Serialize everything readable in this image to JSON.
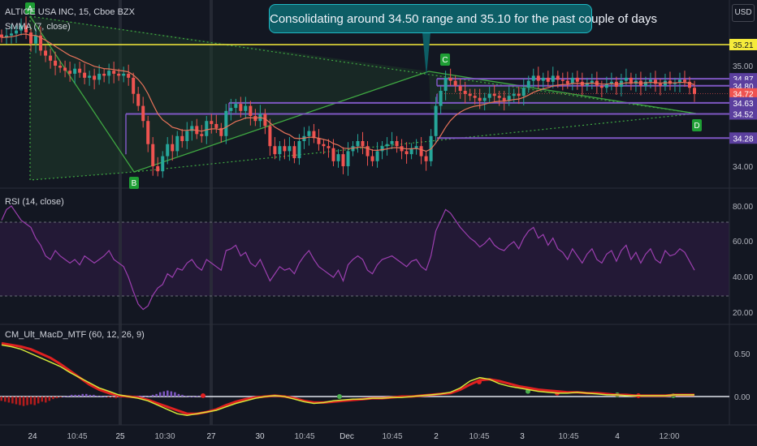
{
  "header": {
    "symbol": "ALTICE USA INC, 15, Cboe BZX",
    "indicator_smma": "SMMA (7, close)",
    "indicator_rsi": "RSI (14, close)",
    "indicator_macd": "CM_Ult_MacD_MTF (60, 12, 26, 9)",
    "currency": "USD"
  },
  "callout": "Consolidating around 34.50 range and 35.10 for the past couple of days",
  "pattern_points": [
    "A",
    "B",
    "C",
    "D"
  ],
  "colors": {
    "up": "#26a69a",
    "down": "#ef5350",
    "smma": "#e8735a",
    "rsi": "#9c3fb0",
    "macd_fast": "#d4e83a",
    "macd_slow_red": "#e02020",
    "macd_slow_green": "#4caf50",
    "level_line": "#7e57c2",
    "resistance": "#f5eb3b",
    "pattern": "#3fa842"
  },
  "chart_data": [
    {
      "type": "candlestick",
      "title": "ALTICE USA INC, 15, Cboe BZX",
      "ylim": [
        33.7,
        35.6
      ],
      "price_ticks": [
        "35.00",
        "34.00"
      ],
      "x_ticks": [
        "24",
        "10:45",
        "25",
        "10:30",
        "27",
        "30",
        "10:45",
        "Dec",
        "10:45",
        "2",
        "10:45",
        "3",
        "10:45",
        "4",
        "12:00"
      ],
      "horizontal_levels": [
        {
          "label": "35.21",
          "value": 35.21,
          "color": "#f5eb3b"
        },
        {
          "label": "34.87",
          "value": 34.87,
          "color": "#7e57c2"
        },
        {
          "label": "34.80",
          "value": 34.8,
          "color": "#7e57c2"
        },
        {
          "label": "34.72",
          "value": 34.72,
          "color": "#ef5350"
        },
        {
          "label": "34.63",
          "value": 34.63,
          "color": "#7e57c2"
        },
        {
          "label": "34.52",
          "value": 34.52,
          "color": "#7e57c2"
        },
        {
          "label": "34.28",
          "value": 34.28,
          "color": "#7e57c2"
        }
      ],
      "closes": [
        35.28,
        35.3,
        35.32,
        35.35,
        35.4,
        35.33,
        35.22,
        35.3,
        35.15,
        35.1,
        35.05,
        35.0,
        34.98,
        34.95,
        34.92,
        34.97,
        34.93,
        34.88,
        34.9,
        34.86,
        34.92,
        34.9,
        34.95,
        34.92,
        34.9,
        34.92,
        34.88,
        34.72,
        34.6,
        34.45,
        34.22,
        34.0,
        33.95,
        34.1,
        34.22,
        34.15,
        34.3,
        34.25,
        34.35,
        34.4,
        34.32,
        34.3,
        34.45,
        34.42,
        34.38,
        34.3,
        34.55,
        34.58,
        34.62,
        34.55,
        34.6,
        34.5,
        34.45,
        34.52,
        34.4,
        34.2,
        34.12,
        34.2,
        34.15,
        34.2,
        34.08,
        34.25,
        34.3,
        34.35,
        34.28,
        34.22,
        34.2,
        34.18,
        34.05,
        34.12,
        34.0,
        34.15,
        34.2,
        34.25,
        34.2,
        34.1,
        34.05,
        34.15,
        34.2,
        34.22,
        34.25,
        34.2,
        34.15,
        34.12,
        34.18,
        34.2,
        34.1,
        34.05,
        34.3,
        34.6,
        34.75,
        34.88,
        34.85,
        34.8,
        34.75,
        34.72,
        34.7,
        34.68,
        34.65,
        34.68,
        34.72,
        34.7,
        34.68,
        34.65,
        34.7,
        34.72,
        34.7,
        34.78,
        34.85,
        34.9,
        34.85,
        34.88,
        34.84,
        34.9,
        34.86,
        34.85,
        34.82,
        34.88,
        34.84,
        34.8,
        34.83,
        34.85,
        34.8,
        34.78,
        34.82,
        34.84,
        34.79,
        34.85,
        34.88,
        34.82,
        34.85,
        34.8,
        34.84,
        34.86,
        34.82,
        34.8,
        34.85,
        34.82,
        34.83,
        34.86,
        34.84,
        34.78,
        34.72
      ]
    },
    {
      "type": "line",
      "title": "RSI (14, close)",
      "ylim": [
        15,
        85
      ],
      "y_ticks": [
        "80.00",
        "60.00",
        "40.00",
        "20.00"
      ],
      "band": [
        30,
        70
      ],
      "values": [
        72,
        78,
        80,
        76,
        72,
        70,
        68,
        62,
        58,
        52,
        50,
        55,
        52,
        50,
        48,
        50,
        47,
        52,
        50,
        48,
        50,
        52,
        55,
        50,
        48,
        46,
        40,
        32,
        25,
        22,
        24,
        30,
        34,
        36,
        42,
        40,
        45,
        44,
        48,
        50,
        46,
        44,
        50,
        48,
        46,
        44,
        55,
        56,
        58,
        52,
        54,
        48,
        46,
        50,
        44,
        38,
        42,
        46,
        44,
        45,
        42,
        48,
        52,
        55,
        50,
        46,
        44,
        42,
        40,
        44,
        38,
        47,
        50,
        52,
        50,
        44,
        42,
        47,
        50,
        51,
        52,
        50,
        48,
        46,
        49,
        50,
        46,
        44,
        52,
        66,
        72,
        78,
        76,
        72,
        68,
        65,
        62,
        60,
        57,
        59,
        62,
        58,
        56,
        55,
        58,
        60,
        56,
        62,
        66,
        68,
        62,
        64,
        58,
        62,
        56,
        54,
        50,
        56,
        52,
        48,
        53,
        56,
        50,
        48,
        53,
        55,
        49,
        55,
        58,
        50,
        54,
        48,
        53,
        56,
        50,
        48,
        55,
        52,
        53,
        56,
        54,
        49,
        44
      ]
    },
    {
      "type": "line",
      "title": "CM_Ult_MacD_MTF (60, 12, 26, 9)",
      "ylim": [
        -0.3,
        0.75
      ],
      "y_ticks": [
        "0.50",
        "0.00"
      ],
      "series": [
        {
          "values": [
            0.6,
            0.58,
            0.55,
            0.5,
            0.45,
            0.4,
            0.35,
            0.28,
            0.22,
            0.16,
            0.1,
            0.06,
            0.02,
            0.0,
            -0.02,
            -0.05,
            -0.1,
            -0.15,
            -0.2,
            -0.22,
            -0.2,
            -0.18,
            -0.16,
            -0.12,
            -0.08,
            -0.05,
            -0.02,
            0.0,
            0.01,
            0.0,
            -0.03,
            -0.06,
            -0.08,
            -0.07,
            -0.05,
            -0.04,
            -0.03,
            -0.03,
            -0.02,
            -0.02,
            -0.01,
            -0.01,
            0.0,
            0.01,
            0.02,
            0.03,
            0.05,
            0.1,
            0.18,
            0.22,
            0.2,
            0.15,
            0.12,
            0.1,
            0.08,
            0.06,
            0.05,
            0.04,
            0.04,
            0.05,
            0.04,
            0.03,
            0.02,
            0.02,
            0.01,
            0.01,
            0.01,
            0.01,
            0.01,
            0.02,
            0.02,
            0.02
          ]
        },
        {
          "values": [
            0.62,
            0.6,
            0.58,
            0.55,
            0.5,
            0.45,
            0.38,
            0.3,
            0.22,
            0.14,
            0.08,
            0.04,
            0.01,
            0.0,
            -0.01,
            -0.04,
            -0.08,
            -0.12,
            -0.16,
            -0.2,
            -0.2,
            -0.18,
            -0.15,
            -0.1,
            -0.06,
            -0.03,
            -0.01,
            0.0,
            0.01,
            0.0,
            -0.02,
            -0.05,
            -0.07,
            -0.07,
            -0.06,
            -0.05,
            -0.04,
            -0.03,
            -0.02,
            -0.02,
            -0.01,
            0.0,
            0.0,
            0.01,
            0.02,
            0.03,
            0.04,
            0.08,
            0.14,
            0.19,
            0.2,
            0.18,
            0.15,
            0.12,
            0.1,
            0.08,
            0.07,
            0.06,
            0.05,
            0.05,
            0.04,
            0.04,
            0.03,
            0.02,
            0.02,
            0.01,
            0.01,
            0.01,
            0.01,
            0.02,
            0.02,
            0.02
          ]
        }
      ],
      "histogram": [
        -0.05,
        -0.06,
        -0.07,
        -0.08,
        -0.09,
        -0.1,
        -0.11,
        -0.1,
        -0.09,
        -0.1,
        -0.08,
        -0.06,
        -0.07,
        -0.05,
        -0.03,
        -0.02,
        -0.01,
        0.0,
        0.01,
        0.02,
        0.02,
        0.02,
        0.03,
        0.03,
        0.02,
        0.02,
        0.01,
        0.01,
        0.0,
        -0.01,
        -0.01,
        -0.02,
        -0.01,
        -0.01,
        0.0,
        0.0,
        0.01,
        0.01,
        0.01,
        0.0,
        0.01,
        0.02,
        0.03,
        0.05,
        0.06,
        0.07,
        0.06,
        0.05,
        0.03,
        0.02,
        0.01,
        0.0,
        0.0,
        0.01,
        0.01,
        0.0
      ]
    }
  ]
}
